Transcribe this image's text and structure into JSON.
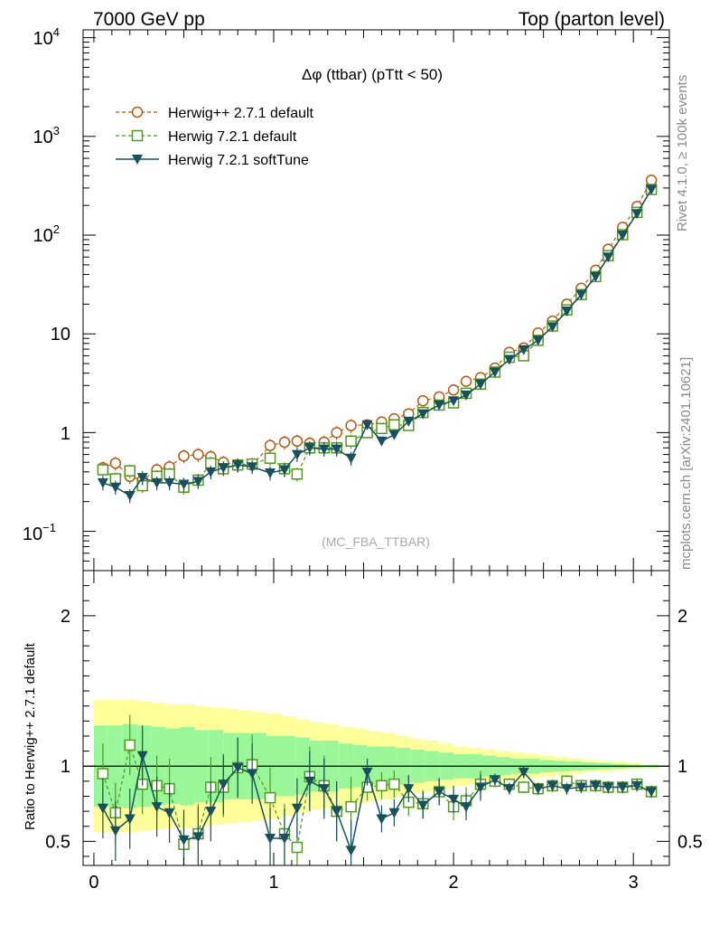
{
  "header": {
    "left_title": "7000 GeV pp",
    "right_title": "Top (parton level)"
  },
  "side_labels": {
    "rivet": "Rivet 4.1.0, ≥ 100k events",
    "mcplots": "mcplots.cern.ch [arXiv:2401.10621]"
  },
  "chart_data": [
    {
      "type": "line",
      "panel": "main",
      "title": "Δφ (ttbar) (pTtt < 50)",
      "watermark": "(MC_FBA_TTBAR)",
      "xlabel": "",
      "ylabel": "",
      "yscale": "log",
      "xlim": [
        -0.06,
        3.2
      ],
      "ylim": [
        0.04,
        12000
      ],
      "ytick_labels": {
        "t1": "10",
        "t1sup": "−1",
        "t2": "1",
        "t3": "10",
        "t4": "10",
        "t4sup": "2",
        "t5": "10",
        "t5sup": "3",
        "t6": "10",
        "t6sup": "4"
      },
      "legend_position": "top-left",
      "x": [
        0.05,
        0.12,
        0.2,
        0.27,
        0.35,
        0.42,
        0.5,
        0.58,
        0.65,
        0.72,
        0.8,
        0.88,
        0.98,
        1.06,
        1.13,
        1.2,
        1.28,
        1.35,
        1.43,
        1.52,
        1.6,
        1.67,
        1.75,
        1.83,
        1.92,
        2.0,
        2.07,
        2.15,
        2.23,
        2.31,
        2.39,
        2.47,
        2.55,
        2.63,
        2.71,
        2.79,
        2.86,
        2.94,
        3.02,
        3.1
      ],
      "series": [
        {
          "name": "Herwig++ 2.7.1 default",
          "color": "#b85a12",
          "marker": "open-circle",
          "line": "dashed",
          "values": [
            0.44,
            0.49,
            0.36,
            0.33,
            0.42,
            0.45,
            0.58,
            0.6,
            0.57,
            0.5,
            0.47,
            0.47,
            0.74,
            0.8,
            0.82,
            0.78,
            0.8,
            1.0,
            1.18,
            1.2,
            1.28,
            1.38,
            1.55,
            2.1,
            2.3,
            2.7,
            3.3,
            3.6,
            4.5,
            6.5,
            7.2,
            10.2,
            13.5,
            20.0,
            29.0,
            44.0,
            72.0,
            120.0,
            195.0,
            360.0
          ]
        },
        {
          "name": "Herwig 7.2.1 default",
          "color": "#4e9a1c",
          "marker": "open-square",
          "line": "dashed",
          "values": [
            0.42,
            0.34,
            0.41,
            0.29,
            0.36,
            0.38,
            0.28,
            0.33,
            0.49,
            0.43,
            0.47,
            0.48,
            0.55,
            0.43,
            0.38,
            0.7,
            0.7,
            0.7,
            0.82,
            1.0,
            1.1,
            1.2,
            1.18,
            1.6,
            1.9,
            2.0,
            2.5,
            3.1,
            4.1,
            5.8,
            6.0,
            8.6,
            12.0,
            17.5,
            25.0,
            38.0,
            62.0,
            101.0,
            170.0,
            290.0
          ]
        },
        {
          "name": "Herwig 7.2.1 softTune",
          "color": "#18505e",
          "marker": "filled-triangle-down",
          "line": "solid",
          "values": [
            0.31,
            0.28,
            0.23,
            0.35,
            0.31,
            0.31,
            0.3,
            0.32,
            0.4,
            0.44,
            0.47,
            0.45,
            0.39,
            0.42,
            0.6,
            0.7,
            0.68,
            0.68,
            0.55,
            1.2,
            0.82,
            0.95,
            1.3,
            1.55,
            1.9,
            2.1,
            2.4,
            3.1,
            4.1,
            5.5,
            6.9,
            8.6,
            11.8,
            17.0,
            25.0,
            38.0,
            60.0,
            100.0,
            165.0,
            290.0
          ]
        }
      ]
    },
    {
      "type": "line",
      "panel": "ratio",
      "ylabel": "Ratio to Herwig++ 2.7.1 default",
      "xlabel": "",
      "xlim": [
        -0.06,
        3.2
      ],
      "ylim": [
        0.34,
        2.3
      ],
      "xtick_labels": [
        "0",
        "1",
        "2",
        "3"
      ],
      "ytick_labels": [
        "0.5",
        "1",
        "2"
      ],
      "reference_line": 1.0,
      "band_edges": [
        0.0,
        0.08,
        0.16,
        0.24,
        0.32,
        0.4,
        0.48,
        0.56,
        0.64,
        0.72,
        0.8,
        0.88,
        0.96,
        1.04,
        1.12,
        1.2,
        1.28,
        1.36,
        1.44,
        1.52,
        1.6,
        1.68,
        1.76,
        1.84,
        1.92,
        2.0,
        2.08,
        2.16,
        2.24,
        2.32,
        2.4,
        2.48,
        2.56,
        2.64,
        2.72,
        2.8,
        2.88,
        2.96,
        3.04,
        3.14
      ],
      "band_inner": [
        0.27,
        0.27,
        0.28,
        0.27,
        0.26,
        0.25,
        0.26,
        0.24,
        0.24,
        0.22,
        0.22,
        0.22,
        0.2,
        0.2,
        0.19,
        0.17,
        0.17,
        0.15,
        0.14,
        0.13,
        0.13,
        0.12,
        0.11,
        0.1,
        0.09,
        0.08,
        0.08,
        0.07,
        0.06,
        0.05,
        0.05,
        0.04,
        0.035,
        0.03,
        0.025,
        0.02,
        0.015,
        0.01,
        0.008
      ],
      "band_outer": [
        0.44,
        0.44,
        0.44,
        0.43,
        0.42,
        0.41,
        0.41,
        0.4,
        0.39,
        0.38,
        0.37,
        0.36,
        0.35,
        0.33,
        0.31,
        0.29,
        0.28,
        0.26,
        0.25,
        0.23,
        0.22,
        0.2,
        0.18,
        0.17,
        0.15,
        0.13,
        0.12,
        0.11,
        0.1,
        0.09,
        0.08,
        0.07,
        0.06,
        0.05,
        0.04,
        0.035,
        0.03,
        0.02,
        0.012
      ],
      "series": [
        {
          "name": "Herwig 7.2.1 default",
          "color": "#4e9a1c",
          "marker": "open-square",
          "values": [
            0.95,
            0.69,
            1.14,
            0.88,
            0.87,
            0.85,
            0.48,
            0.55,
            0.86,
            0.86,
            0.99,
            1.01,
            0.79,
            0.55,
            0.46,
            0.93,
            0.87,
            0.7,
            0.73,
            0.86,
            0.87,
            0.88,
            0.76,
            0.75,
            0.83,
            0.73,
            0.77,
            0.88,
            0.9,
            0.88,
            0.86,
            0.85,
            0.87,
            0.9,
            0.87,
            0.87,
            0.86,
            0.86,
            0.88,
            0.83
          ]
        },
        {
          "name": "Herwig 7.2.1 softTune",
          "color": "#18505e",
          "marker": "filled-triangle-down",
          "values": [
            0.72,
            0.57,
            0.65,
            1.07,
            0.73,
            0.69,
            0.51,
            0.53,
            0.7,
            0.88,
            0.99,
            0.95,
            0.52,
            0.52,
            0.72,
            0.9,
            0.85,
            0.7,
            0.44,
            0.96,
            0.65,
            0.69,
            0.85,
            0.74,
            0.83,
            0.78,
            0.73,
            0.86,
            0.91,
            0.85,
            0.96,
            0.85,
            0.87,
            0.85,
            0.86,
            0.87,
            0.86,
            0.86,
            0.87,
            0.83
          ]
        }
      ]
    }
  ]
}
